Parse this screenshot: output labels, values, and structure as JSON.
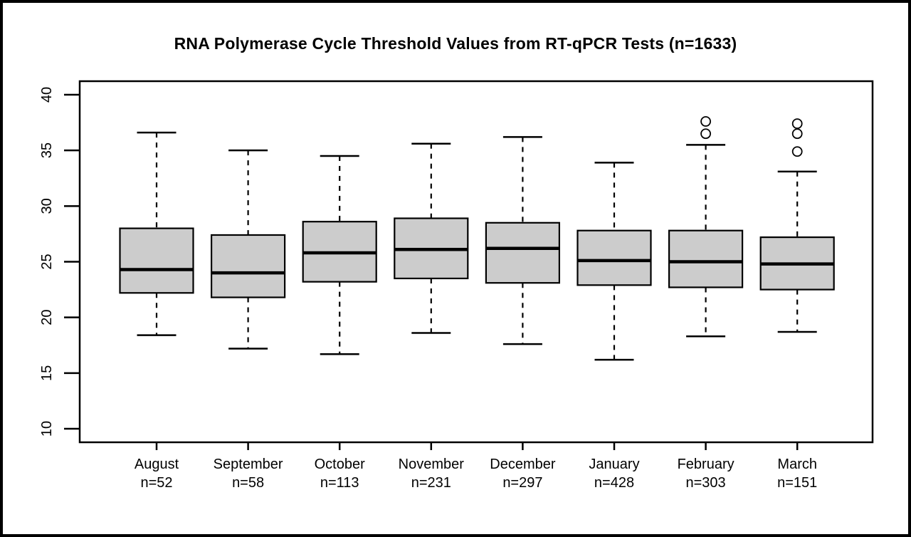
{
  "chart_data": {
    "type": "boxplot",
    "title": "RNA Polymerase Cycle Threshold Values from RT-qPCR Tests (n=1633)",
    "total_n": 1633,
    "ylim": [
      10,
      40
    ],
    "yticks": [
      10,
      15,
      20,
      25,
      30,
      35,
      40
    ],
    "grid": false,
    "legend": "none",
    "box_fill": "#cccccc",
    "box_stroke": "#000000",
    "background": "#ffffff",
    "series": [
      {
        "label": "August",
        "sublabel": "n=52",
        "n": 52,
        "whisker_low": 18.4,
        "q1": 22.2,
        "median": 24.3,
        "q3": 28.0,
        "whisker_high": 36.6,
        "outliers": []
      },
      {
        "label": "September",
        "sublabel": "n=58",
        "n": 58,
        "whisker_low": 17.2,
        "q1": 21.8,
        "median": 24.0,
        "q3": 27.4,
        "whisker_high": 35.0,
        "outliers": []
      },
      {
        "label": "October",
        "sublabel": "n=113",
        "n": 113,
        "whisker_low": 16.7,
        "q1": 23.2,
        "median": 25.8,
        "q3": 28.6,
        "whisker_high": 34.5,
        "outliers": []
      },
      {
        "label": "November",
        "sublabel": "n=231",
        "n": 231,
        "whisker_low": 18.6,
        "q1": 23.5,
        "median": 26.1,
        "q3": 28.9,
        "whisker_high": 35.6,
        "outliers": []
      },
      {
        "label": "December",
        "sublabel": "n=297",
        "n": 297,
        "whisker_low": 17.6,
        "q1": 23.1,
        "median": 26.2,
        "q3": 28.5,
        "whisker_high": 36.2,
        "outliers": []
      },
      {
        "label": "January",
        "sublabel": "n=428",
        "n": 428,
        "whisker_low": 16.2,
        "q1": 22.9,
        "median": 25.1,
        "q3": 27.8,
        "whisker_high": 33.9,
        "outliers": []
      },
      {
        "label": "February",
        "sublabel": "n=303",
        "n": 303,
        "whisker_low": 18.3,
        "q1": 22.7,
        "median": 25.0,
        "q3": 27.8,
        "whisker_high": 35.5,
        "outliers": [
          36.5,
          37.6
        ]
      },
      {
        "label": "March",
        "sublabel": "n=151",
        "n": 151,
        "whisker_low": 18.7,
        "q1": 22.5,
        "median": 24.8,
        "q3": 27.2,
        "whisker_high": 33.1,
        "outliers": [
          34.9,
          36.5,
          37.4
        ]
      }
    ]
  }
}
